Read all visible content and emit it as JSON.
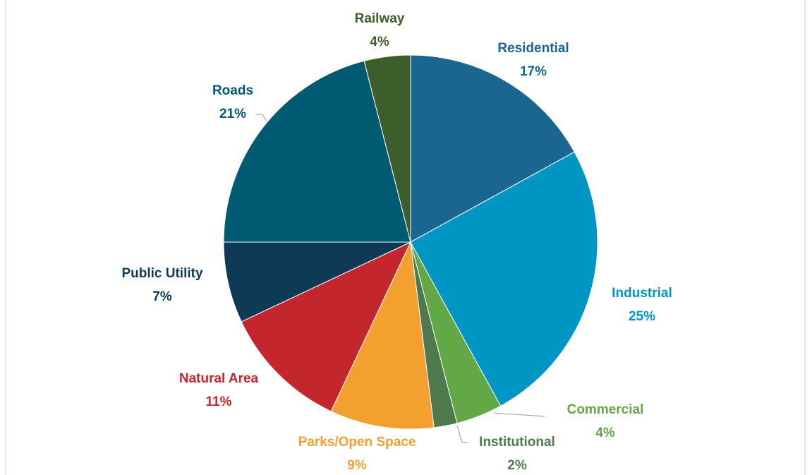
{
  "chart_data": {
    "type": "pie",
    "categories": [
      "Residential",
      "Industrial",
      "Commercial",
      "Institutional",
      "Parks/Open Space",
      "Natural Area",
      "Public Utility",
      "Roads",
      "Railway"
    ],
    "values": [
      17,
      25,
      4,
      2,
      9,
      11,
      7,
      21,
      4
    ],
    "value_labels": [
      "17%",
      "25%",
      "4%",
      "2%",
      "9%",
      "11%",
      "7%",
      "21%",
      "4%"
    ],
    "colors": [
      "#1a6690",
      "#0096c4",
      "#62a846",
      "#4e7a4e",
      "#f4a030",
      "#c4262e",
      "#0e3a55",
      "#005a72",
      "#3d5e2a"
    ]
  }
}
